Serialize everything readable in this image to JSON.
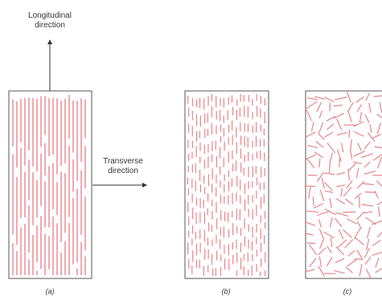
{
  "labels": {
    "longitudinal": "Longitudinal\ndirection",
    "transverse": "Transverse\ndirection"
  },
  "panels": [
    {
      "id": "a",
      "caption": "(a)",
      "fiber_arrangement": "continuous and aligned"
    },
    {
      "id": "b",
      "caption": "(b)",
      "fiber_arrangement": "discontinuous and aligned"
    },
    {
      "id": "c",
      "caption": "(c)",
      "fiber_arrangement": "discontinuous and randomly oriented"
    }
  ],
  "colors": {
    "fiber": "#e8848e",
    "frame": "#555555",
    "arrow": "#333333",
    "text": "#333333"
  }
}
